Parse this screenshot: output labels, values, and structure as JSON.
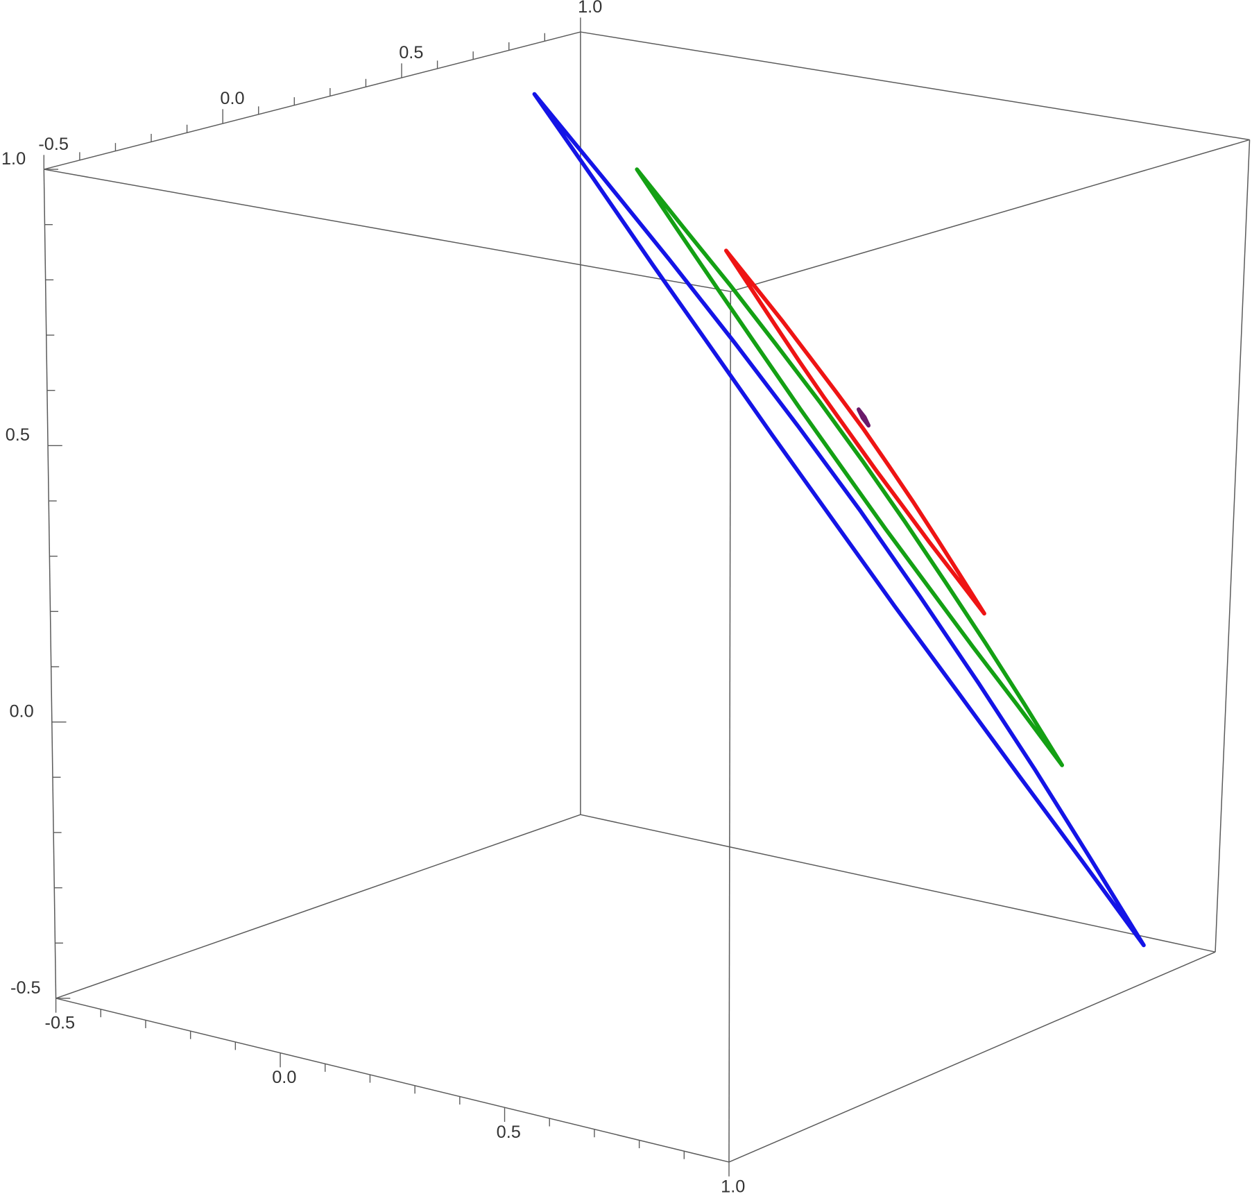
{
  "chart_data": {
    "type": "line3d",
    "xlim": [
      -0.5,
      1
    ],
    "ylim": [
      -0.5,
      1
    ],
    "zlim": [
      -0.5,
      1
    ],
    "xticks": [
      -0.5,
      {
        "value": 0,
        "label": "0.0"
      },
      0.5,
      {
        "value": 1,
        "label": "1.0"
      }
    ],
    "yticks": [
      -0.5,
      {
        "value": 0,
        "label": "0.0"
      },
      0.5,
      {
        "value": 1,
        "label": "1.0"
      }
    ],
    "zticks": [
      -0.5,
      {
        "value": 0,
        "label": "0.0"
      },
      0.5,
      {
        "value": 1,
        "label": "1.0"
      }
    ],
    "xminorticks": [
      -0.4,
      -0.3,
      -0.2,
      -0.1,
      0.1,
      0.2,
      0.3,
      0.4,
      0.6,
      0.7,
      0.8,
      0.9
    ],
    "yminorticks": [
      -0.4,
      -0.3,
      -0.2,
      -0.1,
      0.1,
      0.2,
      0.3,
      0.4,
      0.6,
      0.7,
      0.8,
      0.9
    ],
    "zminorticks": [
      -0.4,
      -0.3,
      -0.2,
      -0.1,
      0.1,
      0.2,
      0.3,
      0.4,
      0.6,
      0.7,
      0.8,
      0.9
    ],
    "series": [
      {
        "color": "#1414e6",
        "x": [
          -0.235,
          -0.112,
          0.012,
          0.136,
          0.259,
          0.383,
          0.506,
          0.63,
          0.753,
          0.877,
          1.0,
          0.877,
          0.753,
          0.63,
          0.506,
          0.383,
          0.259,
          0.136,
          0.012,
          -0.112
        ],
        "y": [
          0.538,
          0.574,
          0.609,
          0.641,
          0.671,
          0.697,
          0.718,
          0.736,
          0.752,
          0.763,
          0.775,
          0.739,
          0.704,
          0.672,
          0.642,
          0.617,
          0.595,
          0.577,
          0.561,
          0.55
        ],
        "z": [
          1.0,
          0.857,
          0.714,
          0.571,
          0.428,
          0.285,
          0.142,
          -0.001,
          -0.144,
          -0.287,
          -0.43,
          -0.287,
          -0.144,
          -0.001,
          0.142,
          0.285,
          0.428,
          0.571,
          0.714,
          0.857
        ]
      },
      {
        "color": "#14a014",
        "x": [
          0.148,
          0.233,
          0.318,
          0.404,
          0.489,
          0.574,
          0.659,
          0.744,
          0.83,
          0.915,
          1.0,
          0.915,
          0.83,
          0.744,
          0.659,
          0.574,
          0.489,
          0.404,
          0.318,
          0.233
        ],
        "y": [
          0.341,
          0.366,
          0.392,
          0.414,
          0.436,
          0.453,
          0.468,
          0.48,
          0.49,
          0.498,
          0.505,
          0.48,
          0.454,
          0.432,
          0.41,
          0.393,
          0.378,
          0.366,
          0.356,
          0.348
        ],
        "z": [
          0.949,
          0.85,
          0.752,
          0.653,
          0.554,
          0.456,
          0.357,
          0.258,
          0.159,
          0.061,
          -0.038,
          0.061,
          0.159,
          0.258,
          0.357,
          0.456,
          0.554,
          0.653,
          0.752,
          0.85
        ]
      },
      {
        "color": "#ee1414",
        "x": [
          0.487,
          0.538,
          0.59,
          0.641,
          0.692,
          0.744,
          0.795,
          0.846,
          0.897,
          0.949,
          1.0,
          0.949,
          0.897,
          0.846,
          0.795,
          0.744,
          0.692,
          0.641,
          0.59,
          0.538
        ],
        "y": [
          0.16,
          0.176,
          0.192,
          0.205,
          0.218,
          0.229,
          0.238,
          0.245,
          0.25,
          0.254,
          0.258,
          0.242,
          0.226,
          0.213,
          0.2,
          0.189,
          0.18,
          0.173,
          0.168,
          0.164
        ],
        "z": [
          0.882,
          0.823,
          0.763,
          0.704,
          0.645,
          0.586,
          0.526,
          0.467,
          0.408,
          0.348,
          0.289,
          0.348,
          0.408,
          0.467,
          0.526,
          0.586,
          0.645,
          0.704,
          0.763,
          0.823
        ]
      },
      {
        "color": "#6a1a6a",
        "x": [
          1,
          1,
          1,
          1
        ],
        "y": [
          -0.125,
          -0.107,
          -0.095,
          -0.113
        ],
        "z": [
          0.727,
          0.71,
          0.693,
          0.71
        ]
      }
    ]
  }
}
